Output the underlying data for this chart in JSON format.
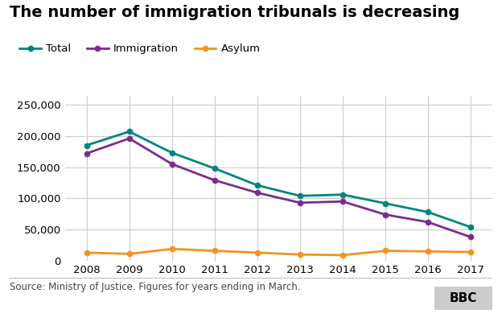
{
  "title": "The number of immigration tribunals is decreasing",
  "years": [
    2008,
    2009,
    2010,
    2011,
    2012,
    2013,
    2014,
    2015,
    2016,
    2017
  ],
  "total": [
    185000,
    207000,
    173000,
    148000,
    121000,
    104000,
    106000,
    92000,
    78000,
    54000
  ],
  "immigration": [
    172000,
    196000,
    155000,
    129000,
    109000,
    93000,
    95000,
    74000,
    62000,
    38000
  ],
  "asylum": [
    13000,
    11000,
    19000,
    16000,
    13000,
    10000,
    9000,
    16000,
    15000,
    14000
  ],
  "total_color": "#00857c",
  "immigration_color": "#7b2d8b",
  "asylum_color": "#f5921e",
  "bg_color": "#ffffff",
  "grid_color": "#cccccc",
  "source_text": "Source: Ministry of Justice. Figures for years ending in March.",
  "bbc_text": "BBC",
  "ylabel_values": [
    0,
    50000,
    100000,
    150000,
    200000,
    250000
  ],
  "ylim": [
    0,
    265000
  ],
  "xlim": [
    2007.5,
    2017.5
  ],
  "legend_labels": [
    "Total",
    "Immigration",
    "Asylum"
  ],
  "title_fontsize": 14,
  "axis_fontsize": 9.5,
  "legend_fontsize": 9.5,
  "source_fontsize": 8.5
}
